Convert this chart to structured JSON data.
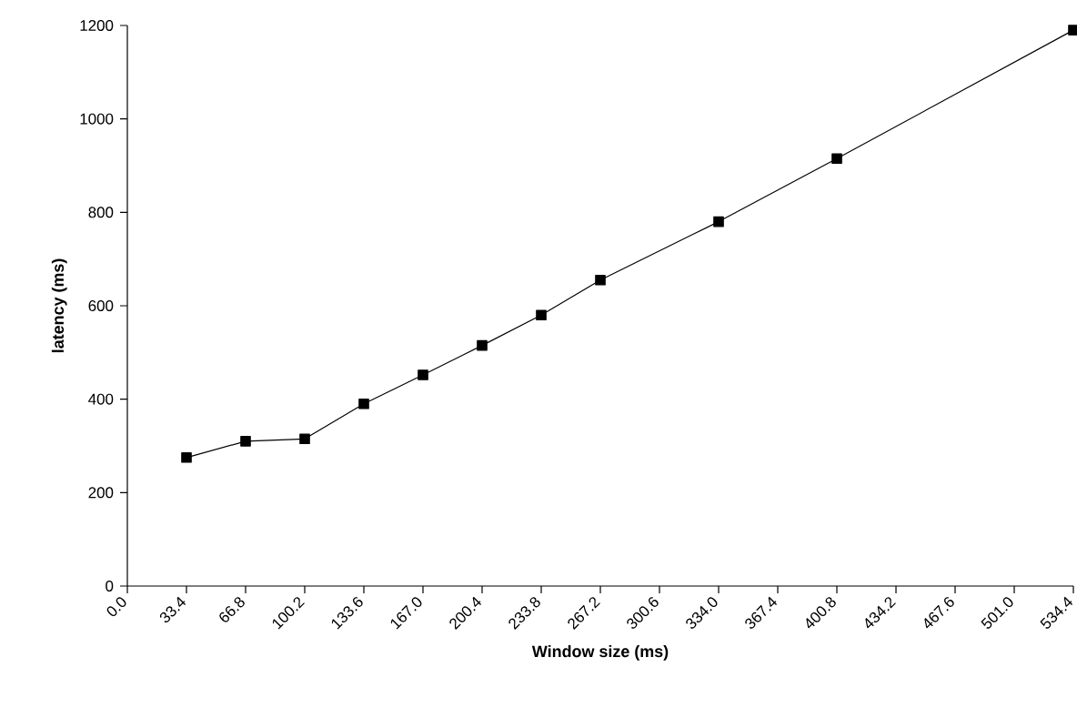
{
  "chart_data": {
    "type": "line",
    "xlabel": "Window size (ms)",
    "ylabel": "latency (ms)",
    "x": [
      33.4,
      66.8,
      100.2,
      133.6,
      167.0,
      200.4,
      233.8,
      267.2,
      334.0,
      400.8,
      534.4
    ],
    "series": [
      {
        "color": "#000000",
        "values": [
          275,
          310,
          315,
          390,
          452,
          515,
          580,
          655,
          780,
          915,
          1190
        ]
      }
    ],
    "xlim": [
      0,
      534.4
    ],
    "ylim": [
      0,
      1200
    ],
    "xticks": [
      {
        "value": 0,
        "label": "0.0"
      },
      33.4,
      66.8,
      100.2,
      133.6,
      {
        "value": 167,
        "label": "167.0"
      },
      200.4,
      233.8,
      267.2,
      300.6,
      {
        "value": 334,
        "label": "334.0"
      },
      367.4,
      400.8,
      434.2,
      467.6,
      {
        "value": 501,
        "label": "501.0"
      },
      534.4
    ],
    "yticks": [
      0,
      200,
      400,
      600,
      800,
      1000,
      1200
    ],
    "grid": false,
    "marker": "square",
    "line_style": "solid"
  }
}
